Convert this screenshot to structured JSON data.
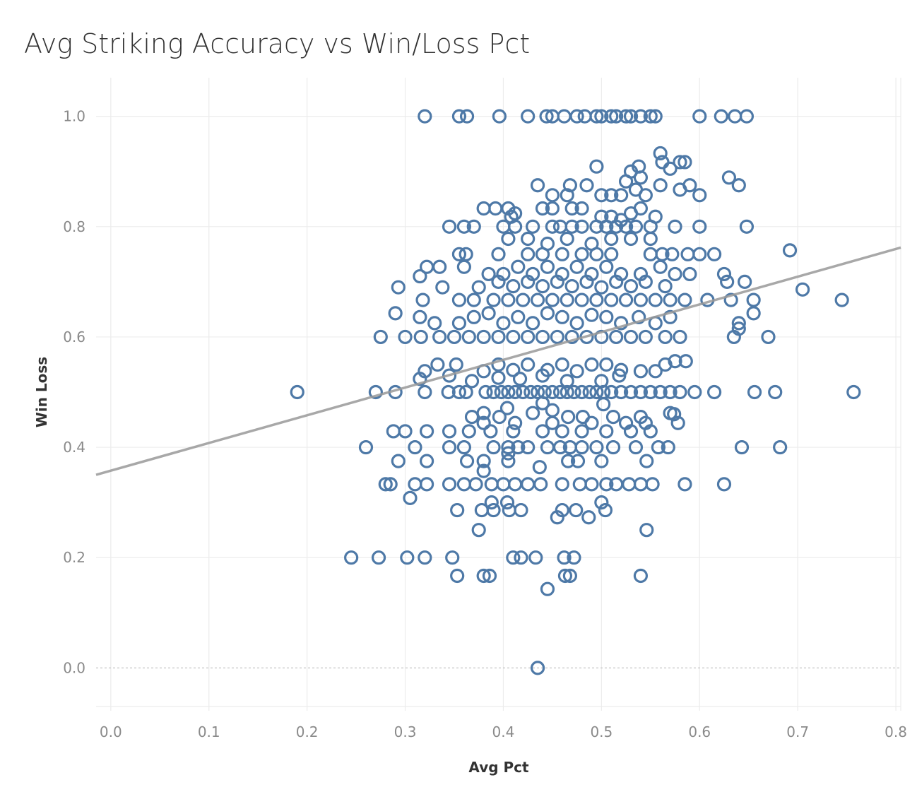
{
  "chart_data": {
    "type": "scatter",
    "title": "Avg Striking Accuracy vs Win/Loss Pct",
    "xlabel": "Avg Pct",
    "ylabel": "Win Loss",
    "xlim": [
      -0.015,
      0.805
    ],
    "ylim": [
      -0.07,
      1.07
    ],
    "x_ticks": [
      "0.0",
      "0.1",
      "0.2",
      "0.3",
      "0.4",
      "0.5",
      "0.6",
      "0.7",
      "0.8"
    ],
    "y_ticks": [
      "0.0",
      "0.2",
      "0.4",
      "0.6",
      "0.8",
      "1.0"
    ],
    "x_tick_values": [
      0,
      0.1,
      0.2,
      0.3,
      0.4,
      0.5,
      0.6,
      0.7,
      0.8
    ],
    "y_tick_values": [
      0,
      0.2,
      0.4,
      0.6,
      0.8,
      1.0
    ],
    "grid": true,
    "marker": "hollow circle",
    "marker_color": "#4e79a7",
    "trend_line": {
      "color": "#999999",
      "x": [
        -0.015,
        0.805
      ],
      "y": [
        0.35,
        0.762
      ]
    },
    "points": [
      [
        0.32,
        1.0
      ],
      [
        0.355,
        1.0
      ],
      [
        0.363,
        1.0
      ],
      [
        0.396,
        1.0
      ],
      [
        0.425,
        1.0
      ],
      [
        0.444,
        1.0
      ],
      [
        0.45,
        1.0
      ],
      [
        0.462,
        1.0
      ],
      [
        0.475,
        1.0
      ],
      [
        0.483,
        1.0
      ],
      [
        0.495,
        1.0
      ],
      [
        0.5,
        1.0
      ],
      [
        0.51,
        1.0
      ],
      [
        0.515,
        1.0
      ],
      [
        0.525,
        1.0
      ],
      [
        0.53,
        1.0
      ],
      [
        0.54,
        1.0
      ],
      [
        0.55,
        1.0
      ],
      [
        0.555,
        1.0
      ],
      [
        0.6,
        1.0
      ],
      [
        0.622,
        1.0
      ],
      [
        0.636,
        1.0
      ],
      [
        0.648,
        1.0
      ],
      [
        0.19,
        0.5
      ],
      [
        0.27,
        0.5
      ],
      [
        0.29,
        0.5
      ],
      [
        0.32,
        0.5
      ],
      [
        0.344,
        0.5
      ],
      [
        0.355,
        0.5
      ],
      [
        0.362,
        0.5
      ],
      [
        0.382,
        0.5
      ],
      [
        0.39,
        0.5
      ],
      [
        0.398,
        0.5
      ],
      [
        0.405,
        0.5
      ],
      [
        0.412,
        0.5
      ],
      [
        0.42,
        0.5
      ],
      [
        0.428,
        0.5
      ],
      [
        0.435,
        0.5
      ],
      [
        0.442,
        0.5
      ],
      [
        0.45,
        0.5
      ],
      [
        0.458,
        0.5
      ],
      [
        0.465,
        0.5
      ],
      [
        0.472,
        0.5
      ],
      [
        0.48,
        0.5
      ],
      [
        0.488,
        0.5
      ],
      [
        0.495,
        0.5
      ],
      [
        0.502,
        0.5
      ],
      [
        0.51,
        0.5
      ],
      [
        0.52,
        0.5
      ],
      [
        0.53,
        0.5
      ],
      [
        0.54,
        0.5
      ],
      [
        0.55,
        0.5
      ],
      [
        0.56,
        0.5
      ],
      [
        0.57,
        0.5
      ],
      [
        0.58,
        0.5
      ],
      [
        0.595,
        0.5
      ],
      [
        0.615,
        0.5
      ],
      [
        0.656,
        0.5
      ],
      [
        0.677,
        0.5
      ],
      [
        0.757,
        0.5
      ],
      [
        0.28,
        0.333
      ],
      [
        0.285,
        0.333
      ],
      [
        0.31,
        0.333
      ],
      [
        0.322,
        0.333
      ],
      [
        0.345,
        0.333
      ],
      [
        0.36,
        0.333
      ],
      [
        0.372,
        0.333
      ],
      [
        0.388,
        0.333
      ],
      [
        0.4,
        0.333
      ],
      [
        0.412,
        0.333
      ],
      [
        0.425,
        0.333
      ],
      [
        0.438,
        0.333
      ],
      [
        0.46,
        0.333
      ],
      [
        0.478,
        0.333
      ],
      [
        0.49,
        0.333
      ],
      [
        0.505,
        0.333
      ],
      [
        0.515,
        0.333
      ],
      [
        0.528,
        0.333
      ],
      [
        0.54,
        0.333
      ],
      [
        0.552,
        0.333
      ],
      [
        0.585,
        0.333
      ],
      [
        0.625,
        0.333
      ],
      [
        0.26,
        0.4
      ],
      [
        0.31,
        0.4
      ],
      [
        0.345,
        0.4
      ],
      [
        0.36,
        0.4
      ],
      [
        0.39,
        0.4
      ],
      [
        0.405,
        0.4
      ],
      [
        0.415,
        0.4
      ],
      [
        0.425,
        0.4
      ],
      [
        0.445,
        0.4
      ],
      [
        0.458,
        0.4
      ],
      [
        0.468,
        0.4
      ],
      [
        0.48,
        0.4
      ],
      [
        0.495,
        0.4
      ],
      [
        0.512,
        0.4
      ],
      [
        0.535,
        0.4
      ],
      [
        0.558,
        0.4
      ],
      [
        0.568,
        0.4
      ],
      [
        0.643,
        0.4
      ],
      [
        0.682,
        0.4
      ],
      [
        0.245,
        0.2
      ],
      [
        0.273,
        0.2
      ],
      [
        0.302,
        0.2
      ],
      [
        0.32,
        0.2
      ],
      [
        0.348,
        0.2
      ],
      [
        0.41,
        0.2
      ],
      [
        0.418,
        0.2
      ],
      [
        0.433,
        0.2
      ],
      [
        0.462,
        0.2
      ],
      [
        0.472,
        0.2
      ],
      [
        0.353,
        0.167
      ],
      [
        0.38,
        0.167
      ],
      [
        0.386,
        0.167
      ],
      [
        0.463,
        0.167
      ],
      [
        0.468,
        0.167
      ],
      [
        0.54,
        0.167
      ],
      [
        0.445,
        0.143
      ],
      [
        0.435,
        0.0
      ],
      [
        0.353,
        0.286
      ],
      [
        0.378,
        0.286
      ],
      [
        0.39,
        0.286
      ],
      [
        0.406,
        0.286
      ],
      [
        0.418,
        0.286
      ],
      [
        0.46,
        0.286
      ],
      [
        0.474,
        0.286
      ],
      [
        0.504,
        0.286
      ],
      [
        0.305,
        0.308
      ],
      [
        0.5,
        0.3
      ],
      [
        0.388,
        0.3
      ],
      [
        0.404,
        0.3
      ],
      [
        0.375,
        0.25
      ],
      [
        0.546,
        0.25
      ],
      [
        0.455,
        0.273
      ],
      [
        0.487,
        0.273
      ],
      [
        0.293,
        0.375
      ],
      [
        0.322,
        0.375
      ],
      [
        0.363,
        0.375
      ],
      [
        0.38,
        0.375
      ],
      [
        0.405,
        0.375
      ],
      [
        0.466,
        0.375
      ],
      [
        0.476,
        0.375
      ],
      [
        0.5,
        0.375
      ],
      [
        0.546,
        0.375
      ],
      [
        0.437,
        0.364
      ],
      [
        0.38,
        0.357
      ],
      [
        0.405,
        0.389
      ],
      [
        0.288,
        0.429
      ],
      [
        0.3,
        0.429
      ],
      [
        0.322,
        0.429
      ],
      [
        0.345,
        0.429
      ],
      [
        0.365,
        0.429
      ],
      [
        0.387,
        0.429
      ],
      [
        0.41,
        0.429
      ],
      [
        0.44,
        0.429
      ],
      [
        0.46,
        0.429
      ],
      [
        0.48,
        0.429
      ],
      [
        0.505,
        0.429
      ],
      [
        0.53,
        0.429
      ],
      [
        0.55,
        0.429
      ],
      [
        0.38,
        0.444
      ],
      [
        0.412,
        0.444
      ],
      [
        0.45,
        0.444
      ],
      [
        0.49,
        0.444
      ],
      [
        0.525,
        0.444
      ],
      [
        0.545,
        0.444
      ],
      [
        0.578,
        0.444
      ],
      [
        0.368,
        0.455
      ],
      [
        0.38,
        0.462
      ],
      [
        0.396,
        0.455
      ],
      [
        0.43,
        0.462
      ],
      [
        0.45,
        0.467
      ],
      [
        0.466,
        0.455
      ],
      [
        0.481,
        0.455
      ],
      [
        0.512,
        0.455
      ],
      [
        0.54,
        0.455
      ],
      [
        0.57,
        0.462
      ],
      [
        0.574,
        0.46
      ],
      [
        0.404,
        0.471
      ],
      [
        0.44,
        0.48
      ],
      [
        0.502,
        0.478
      ],
      [
        0.32,
        0.538
      ],
      [
        0.333,
        0.55
      ],
      [
        0.352,
        0.55
      ],
      [
        0.38,
        0.538
      ],
      [
        0.395,
        0.55
      ],
      [
        0.41,
        0.54
      ],
      [
        0.425,
        0.55
      ],
      [
        0.445,
        0.54
      ],
      [
        0.46,
        0.55
      ],
      [
        0.475,
        0.538
      ],
      [
        0.49,
        0.55
      ],
      [
        0.505,
        0.55
      ],
      [
        0.52,
        0.54
      ],
      [
        0.54,
        0.538
      ],
      [
        0.555,
        0.538
      ],
      [
        0.565,
        0.55
      ],
      [
        0.575,
        0.556
      ],
      [
        0.586,
        0.556
      ],
      [
        0.315,
        0.524
      ],
      [
        0.345,
        0.53
      ],
      [
        0.368,
        0.52
      ],
      [
        0.395,
        0.526
      ],
      [
        0.417,
        0.524
      ],
      [
        0.44,
        0.53
      ],
      [
        0.465,
        0.52
      ],
      [
        0.5,
        0.52
      ],
      [
        0.518,
        0.53
      ],
      [
        0.275,
        0.6
      ],
      [
        0.3,
        0.6
      ],
      [
        0.316,
        0.6
      ],
      [
        0.335,
        0.6
      ],
      [
        0.35,
        0.6
      ],
      [
        0.365,
        0.6
      ],
      [
        0.38,
        0.6
      ],
      [
        0.395,
        0.6
      ],
      [
        0.41,
        0.6
      ],
      [
        0.425,
        0.6
      ],
      [
        0.44,
        0.6
      ],
      [
        0.455,
        0.6
      ],
      [
        0.47,
        0.6
      ],
      [
        0.485,
        0.6
      ],
      [
        0.5,
        0.6
      ],
      [
        0.515,
        0.6
      ],
      [
        0.53,
        0.6
      ],
      [
        0.545,
        0.6
      ],
      [
        0.565,
        0.6
      ],
      [
        0.58,
        0.6
      ],
      [
        0.635,
        0.6
      ],
      [
        0.67,
        0.6
      ],
      [
        0.315,
        0.636
      ],
      [
        0.33,
        0.625
      ],
      [
        0.355,
        0.625
      ],
      [
        0.37,
        0.636
      ],
      [
        0.385,
        0.643
      ],
      [
        0.4,
        0.625
      ],
      [
        0.415,
        0.636
      ],
      [
        0.43,
        0.625
      ],
      [
        0.445,
        0.643
      ],
      [
        0.46,
        0.636
      ],
      [
        0.475,
        0.625
      ],
      [
        0.49,
        0.64
      ],
      [
        0.505,
        0.636
      ],
      [
        0.52,
        0.625
      ],
      [
        0.538,
        0.636
      ],
      [
        0.555,
        0.625
      ],
      [
        0.57,
        0.636
      ],
      [
        0.64,
        0.625
      ],
      [
        0.64,
        0.615
      ],
      [
        0.655,
        0.643
      ],
      [
        0.29,
        0.643
      ],
      [
        0.318,
        0.667
      ],
      [
        0.355,
        0.667
      ],
      [
        0.37,
        0.667
      ],
      [
        0.39,
        0.667
      ],
      [
        0.405,
        0.667
      ],
      [
        0.42,
        0.667
      ],
      [
        0.435,
        0.667
      ],
      [
        0.45,
        0.667
      ],
      [
        0.465,
        0.667
      ],
      [
        0.48,
        0.667
      ],
      [
        0.495,
        0.667
      ],
      [
        0.51,
        0.667
      ],
      [
        0.525,
        0.667
      ],
      [
        0.54,
        0.667
      ],
      [
        0.555,
        0.667
      ],
      [
        0.57,
        0.667
      ],
      [
        0.585,
        0.667
      ],
      [
        0.608,
        0.667
      ],
      [
        0.632,
        0.667
      ],
      [
        0.655,
        0.667
      ],
      [
        0.745,
        0.667
      ],
      [
        0.293,
        0.69
      ],
      [
        0.338,
        0.69
      ],
      [
        0.375,
        0.69
      ],
      [
        0.395,
        0.7
      ],
      [
        0.41,
        0.692
      ],
      [
        0.425,
        0.7
      ],
      [
        0.44,
        0.692
      ],
      [
        0.455,
        0.7
      ],
      [
        0.47,
        0.692
      ],
      [
        0.485,
        0.7
      ],
      [
        0.5,
        0.69
      ],
      [
        0.515,
        0.7
      ],
      [
        0.53,
        0.692
      ],
      [
        0.545,
        0.7
      ],
      [
        0.565,
        0.692
      ],
      [
        0.628,
        0.7
      ],
      [
        0.646,
        0.7
      ],
      [
        0.705,
        0.686
      ],
      [
        0.315,
        0.71
      ],
      [
        0.322,
        0.727
      ],
      [
        0.335,
        0.727
      ],
      [
        0.36,
        0.727
      ],
      [
        0.385,
        0.714
      ],
      [
        0.4,
        0.714
      ],
      [
        0.415,
        0.727
      ],
      [
        0.43,
        0.714
      ],
      [
        0.445,
        0.727
      ],
      [
        0.46,
        0.714
      ],
      [
        0.475,
        0.727
      ],
      [
        0.49,
        0.714
      ],
      [
        0.505,
        0.727
      ],
      [
        0.52,
        0.714
      ],
      [
        0.54,
        0.714
      ],
      [
        0.56,
        0.727
      ],
      [
        0.575,
        0.714
      ],
      [
        0.59,
        0.714
      ],
      [
        0.625,
        0.714
      ],
      [
        0.355,
        0.75
      ],
      [
        0.362,
        0.75
      ],
      [
        0.395,
        0.75
      ],
      [
        0.425,
        0.75
      ],
      [
        0.44,
        0.75
      ],
      [
        0.46,
        0.75
      ],
      [
        0.48,
        0.75
      ],
      [
        0.495,
        0.75
      ],
      [
        0.51,
        0.75
      ],
      [
        0.55,
        0.75
      ],
      [
        0.562,
        0.75
      ],
      [
        0.572,
        0.75
      ],
      [
        0.588,
        0.75
      ],
      [
        0.6,
        0.75
      ],
      [
        0.615,
        0.75
      ],
      [
        0.692,
        0.757
      ],
      [
        0.405,
        0.778
      ],
      [
        0.425,
        0.778
      ],
      [
        0.445,
        0.769
      ],
      [
        0.465,
        0.778
      ],
      [
        0.49,
        0.769
      ],
      [
        0.51,
        0.778
      ],
      [
        0.53,
        0.778
      ],
      [
        0.55,
        0.778
      ],
      [
        0.345,
        0.8
      ],
      [
        0.36,
        0.8
      ],
      [
        0.37,
        0.8
      ],
      [
        0.4,
        0.8
      ],
      [
        0.412,
        0.8
      ],
      [
        0.43,
        0.8
      ],
      [
        0.45,
        0.8
      ],
      [
        0.458,
        0.8
      ],
      [
        0.47,
        0.8
      ],
      [
        0.48,
        0.8
      ],
      [
        0.495,
        0.8
      ],
      [
        0.505,
        0.8
      ],
      [
        0.515,
        0.8
      ],
      [
        0.525,
        0.8
      ],
      [
        0.535,
        0.8
      ],
      [
        0.55,
        0.8
      ],
      [
        0.575,
        0.8
      ],
      [
        0.6,
        0.8
      ],
      [
        0.648,
        0.8
      ],
      [
        0.38,
        0.833
      ],
      [
        0.392,
        0.833
      ],
      [
        0.405,
        0.833
      ],
      [
        0.408,
        0.818
      ],
      [
        0.412,
        0.824
      ],
      [
        0.44,
        0.833
      ],
      [
        0.45,
        0.833
      ],
      [
        0.47,
        0.833
      ],
      [
        0.48,
        0.833
      ],
      [
        0.5,
        0.818
      ],
      [
        0.51,
        0.818
      ],
      [
        0.52,
        0.812
      ],
      [
        0.53,
        0.824
      ],
      [
        0.54,
        0.833
      ],
      [
        0.555,
        0.818
      ],
      [
        0.435,
        0.875
      ],
      [
        0.45,
        0.857
      ],
      [
        0.465,
        0.857
      ],
      [
        0.468,
        0.875
      ],
      [
        0.485,
        0.875
      ],
      [
        0.5,
        0.857
      ],
      [
        0.51,
        0.857
      ],
      [
        0.52,
        0.857
      ],
      [
        0.525,
        0.882
      ],
      [
        0.535,
        0.867
      ],
      [
        0.54,
        0.889
      ],
      [
        0.545,
        0.857
      ],
      [
        0.56,
        0.875
      ],
      [
        0.58,
        0.867
      ],
      [
        0.59,
        0.875
      ],
      [
        0.6,
        0.857
      ],
      [
        0.63,
        0.889
      ],
      [
        0.64,
        0.875
      ],
      [
        0.495,
        0.909
      ],
      [
        0.53,
        0.9
      ],
      [
        0.538,
        0.909
      ],
      [
        0.56,
        0.933
      ],
      [
        0.562,
        0.917
      ],
      [
        0.57,
        0.905
      ],
      [
        0.58,
        0.917
      ],
      [
        0.585,
        0.917
      ]
    ]
  }
}
